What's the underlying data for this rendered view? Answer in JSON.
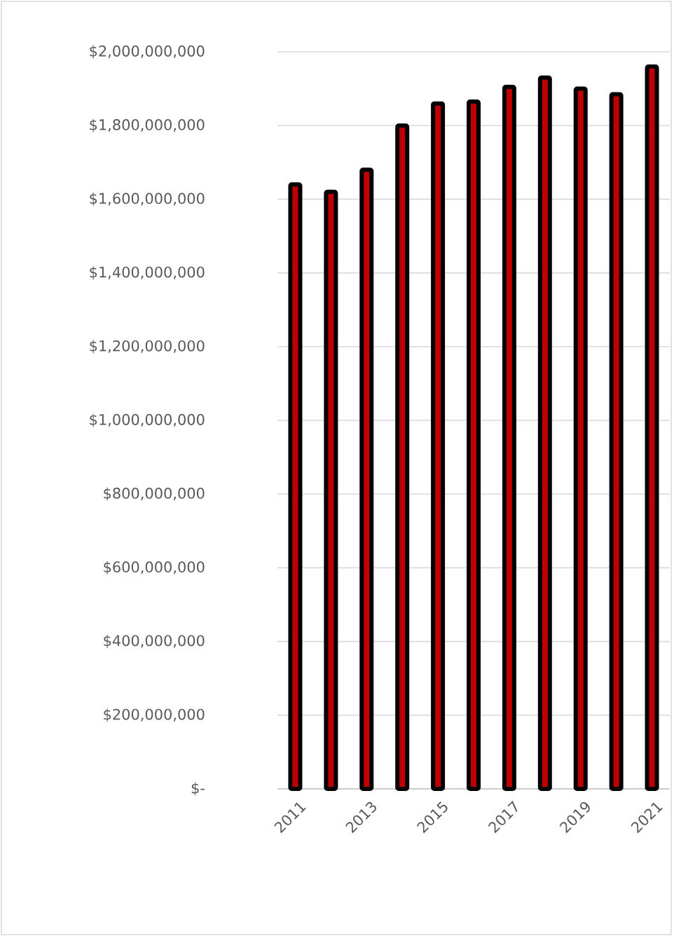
{
  "chart_data": {
    "type": "bar",
    "categories": [
      "2011",
      null,
      "2013",
      null,
      "2015",
      null,
      "2017",
      null,
      "2019",
      null,
      "2021"
    ],
    "values": [
      1640000000,
      1620000000,
      1680000000,
      1800000000,
      1860000000,
      1865000000,
      1905000000,
      1930000000,
      1900000000,
      1885000000,
      1960000000
    ],
    "color": "#c00000",
    "ylim": [
      0,
      2000000000
    ],
    "yticks": [
      {
        "value": 0,
        "label": "$-"
      },
      {
        "value": 200000000,
        "label": "$200,000,000"
      },
      {
        "value": 400000000,
        "label": "$400,000,000"
      },
      {
        "value": 600000000,
        "label": "$600,000,000"
      },
      {
        "value": 800000000,
        "label": "$800,000,000"
      },
      {
        "value": 1000000000,
        "label": "$1,000,000,000"
      },
      {
        "value": 1200000000,
        "label": "$1,200,000,000"
      },
      {
        "value": 1400000000,
        "label": "$1,400,000,000"
      },
      {
        "value": 1600000000,
        "label": "$1,600,000,000"
      },
      {
        "value": 1800000000,
        "label": "$1,800,000,000"
      },
      {
        "value": 2000000000,
        "label": "$2,000,000,000"
      }
    ],
    "grid": "y"
  }
}
